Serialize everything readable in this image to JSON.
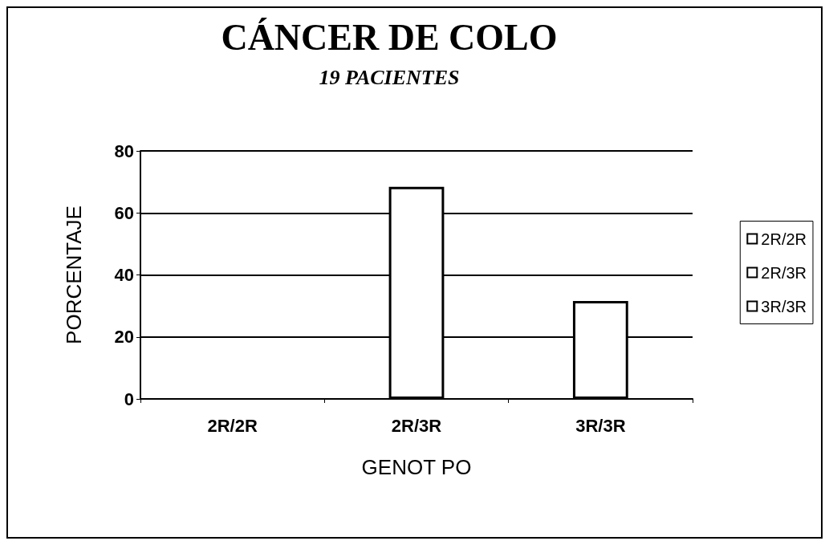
{
  "chart_data": {
    "type": "bar",
    "title": "CÁNCER DE COLO",
    "subtitle": "19 PACIENTES",
    "xlabel": "GENOT PO",
    "ylabel": "PORCENTAJE",
    "categories": [
      "2R/2R",
      "2R/3R",
      "3R/3R"
    ],
    "series": [
      {
        "name": "2R/2R",
        "color": "#ffffff",
        "values": [
          0,
          null,
          null
        ]
      },
      {
        "name": "2R/3R",
        "color": "#ffffff",
        "values": [
          null,
          68.4,
          null
        ]
      },
      {
        "name": "3R/3R",
        "color": "#ffffff",
        "values": [
          null,
          null,
          31.6
        ]
      }
    ],
    "ylim": [
      0,
      80
    ],
    "yticks": [
      0,
      20,
      40,
      60,
      80
    ],
    "grid": "y",
    "legend": "right"
  }
}
